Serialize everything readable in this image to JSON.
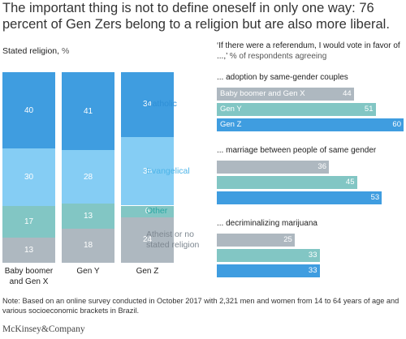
{
  "headline": "The important thing is not to define oneself in only one way: 76 percent of Gen Zers belong to a religion but are also more liberal.",
  "colors": {
    "catholic": "#3f9de0",
    "evangelical": "#85cdf4",
    "other": "#82c6c4",
    "atheist": "#aeb8c0",
    "bar_boomer": "#aeb8c0",
    "bar_geny": "#82c6c4",
    "bar_genz": "#3f9de0",
    "label_catholic": "#2e8fd6",
    "label_evangelical": "#4db4e8",
    "label_other": "#2aa7a3",
    "label_atheist": "#7d8790"
  },
  "chart_data": [
    {
      "type": "bar",
      "stacked": true,
      "title": "Stated religion",
      "unit": "%",
      "categories": [
        "Baby boomer and Gen X",
        "Gen Y",
        "Gen Z"
      ],
      "series": [
        {
          "name": "Catholic",
          "values": [
            40,
            41,
            34
          ]
        },
        {
          "name": "Evangelical",
          "values": [
            30,
            28,
            36
          ]
        },
        {
          "name": "Other",
          "values": [
            17,
            13,
            6
          ]
        },
        {
          "name": "Atheist or no stated religion",
          "values": [
            13,
            18,
            24
          ]
        }
      ]
    },
    {
      "type": "bar",
      "orientation": "horizontal",
      "title": "‘If there were a referendum, I would vote in favor of ...,’",
      "unit": "% of respondents agreeing",
      "xlim": [
        0,
        60
      ],
      "groups": [
        {
          "label": "... adoption by same-gender couples",
          "bars": [
            {
              "name": "Baby boomer and Gen X",
              "value": 44
            },
            {
              "name": "Gen Y",
              "value": 51
            },
            {
              "name": "Gen Z",
              "value": 60
            }
          ]
        },
        {
          "label": "... marriage between people of same gender",
          "bars": [
            {
              "name": "",
              "value": 36
            },
            {
              "name": "",
              "value": 45
            },
            {
              "name": "",
              "value": 53
            }
          ]
        },
        {
          "label": "... decriminalizing marijuana",
          "bars": [
            {
              "name": "",
              "value": 25
            },
            {
              "name": "",
              "value": 33
            },
            {
              "name": "",
              "value": 33
            }
          ]
        }
      ]
    }
  ],
  "note": "Note: Based on an online survey conducted in October 2017 with 2,321 men and women from 14 to 64 years of age and various socioeconomic brackets in Brazil.",
  "brand": "McKinsey&Company"
}
